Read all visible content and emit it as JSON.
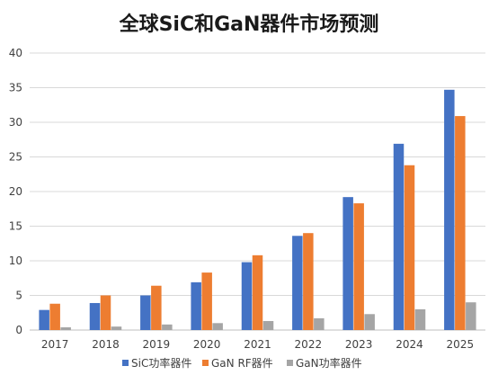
{
  "chart_data": {
    "type": "bar",
    "title": "全球SiC和GaN器件市场预测",
    "xlabel": "",
    "ylabel": "",
    "ylim": [
      0,
      40
    ],
    "yticks": [
      0,
      5,
      10,
      15,
      20,
      25,
      30,
      35,
      40
    ],
    "grid": true,
    "legend_position": "bottom",
    "categories": [
      "2017",
      "2018",
      "2019",
      "2020",
      "2021",
      "2022",
      "2023",
      "2024",
      "2025"
    ],
    "series": [
      {
        "name": "SiC功率器件",
        "color": "#4472C4",
        "values": [
          2.9,
          3.9,
          5.0,
          6.9,
          9.8,
          13.6,
          19.2,
          26.9,
          34.7
        ]
      },
      {
        "name": "GaN RF器件",
        "color": "#ED7D31",
        "values": [
          3.8,
          5.0,
          6.4,
          8.3,
          10.8,
          14.0,
          18.3,
          23.8,
          30.9
        ]
      },
      {
        "name": "GaN功率器件",
        "color": "#A5A5A5",
        "values": [
          0.4,
          0.5,
          0.8,
          1.0,
          1.3,
          1.7,
          2.3,
          3.0,
          4.0
        ]
      }
    ]
  }
}
